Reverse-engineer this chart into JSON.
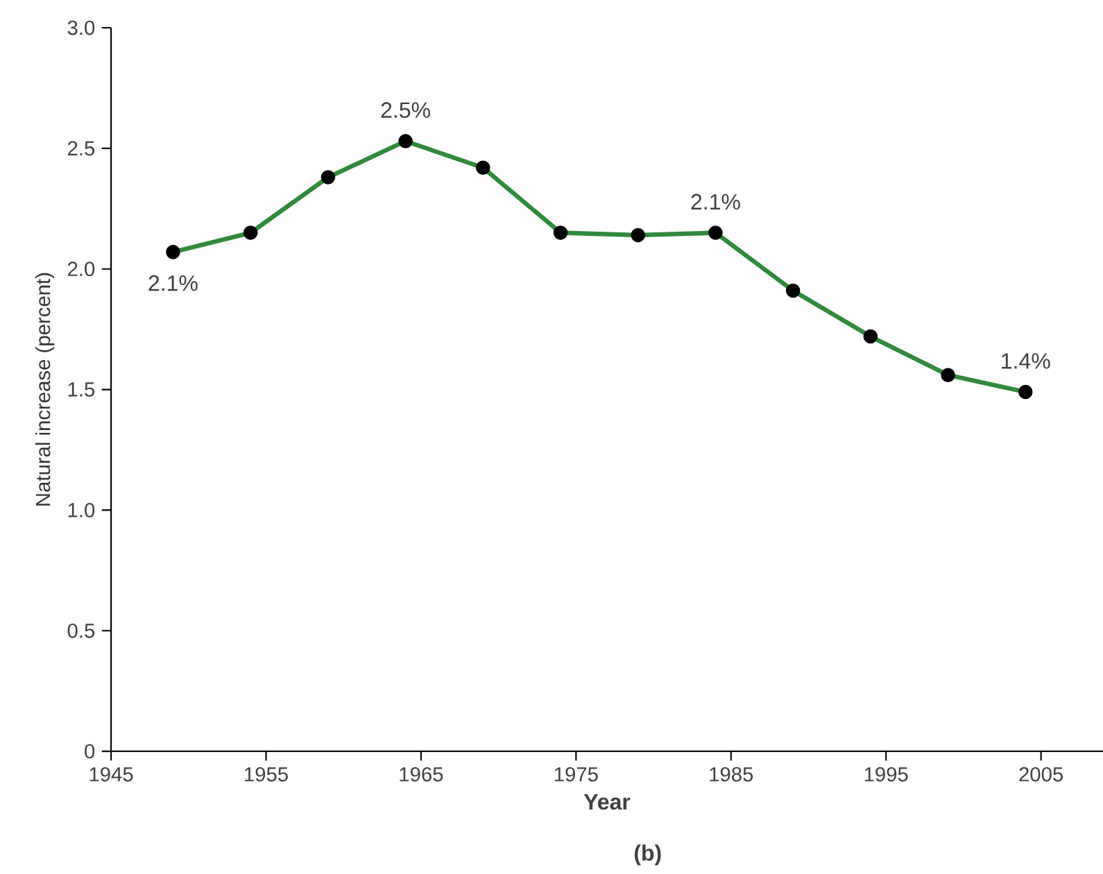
{
  "chart_data": {
    "type": "line",
    "xlabel": "Year",
    "ylabel": "Natural increase (percent)",
    "x": [
      1949,
      1954,
      1959,
      1964,
      1969,
      1974,
      1979,
      1984,
      1989,
      1994,
      1999,
      2004
    ],
    "series": [
      {
        "color": "#2e8b3a",
        "values": [
          2.07,
          2.15,
          2.38,
          2.53,
          2.42,
          2.15,
          2.14,
          2.15,
          1.91,
          1.72,
          1.56,
          1.49
        ]
      }
    ],
    "xlim": [
      1945,
      2009
    ],
    "ylim": [
      0,
      3
    ],
    "xticks": [
      1945,
      1955,
      1965,
      1975,
      1985,
      1995,
      2005
    ],
    "yticks": [
      {
        "value": 0,
        "label": "0"
      },
      {
        "value": 0.5,
        "label": "0.5"
      },
      {
        "value": 1,
        "label": "1.0"
      },
      {
        "value": 1.5,
        "label": "1.5"
      },
      {
        "value": 2,
        "label": "2.0"
      },
      {
        "value": 2.5,
        "label": "2.5"
      },
      {
        "value": 3,
        "label": "3.0"
      }
    ],
    "marker": "circle",
    "grid": false,
    "legend": false,
    "annotations": [
      {
        "text": "2.1%",
        "x": 1949,
        "y": 2.07
      },
      {
        "text": "2.5%",
        "x": 1964,
        "y": 2.53
      },
      {
        "text": "2.1%",
        "x": 1984,
        "y": 2.15
      },
      {
        "text": "1.4%",
        "x": 2004,
        "y": 1.49
      },
      "(b)"
    ]
  }
}
